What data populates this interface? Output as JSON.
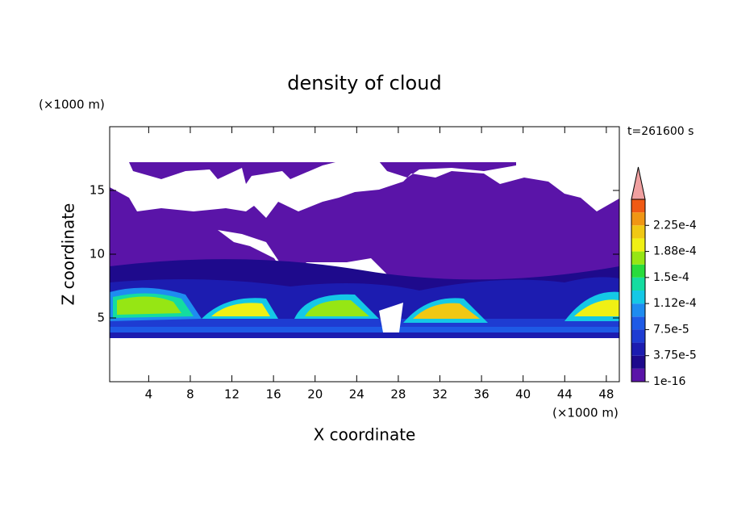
{
  "chart_data": {
    "type": "contour",
    "title": "density of cloud",
    "x_label": "X coordinate",
    "y_label": "Z coordinate",
    "x_unit": "(×1000 m)",
    "y_unit": "(×1000 m)",
    "time_label": "t=261600 s",
    "xlim": [
      0.25,
      49.25
    ],
    "ylim": [
      0,
      20
    ],
    "xticks": [
      4,
      8,
      12,
      16,
      20,
      24,
      28,
      32,
      36,
      40,
      44,
      48
    ],
    "yticks": [
      5,
      10,
      15
    ],
    "colorbar": {
      "levels": [
        1e-16,
        1.875e-05,
        3.75e-05,
        5.625e-05,
        7.5e-05,
        9.375e-05,
        0.0001125,
        0.00013125,
        0.00015,
        0.00016875,
        0.0001875,
        0.00020625,
        0.000225,
        0.00024375,
        0.0002625
      ],
      "colors": [
        "#5a14a8",
        "#1e0a8c",
        "#1c1cb0",
        "#1e3cd2",
        "#1e5ae6",
        "#1e8cf0",
        "#14c8e6",
        "#14dca0",
        "#28dc3c",
        "#96e614",
        "#f0f014",
        "#f0c814",
        "#f09614",
        "#f05a14"
      ],
      "extend_color": "#f0a0a0",
      "ticks": [
        {
          "value": 1e-16,
          "label": "1e-16"
        },
        {
          "value": 3.75e-05,
          "label": "3.75e-5"
        },
        {
          "value": 7.5e-05,
          "label": "7.5e-5"
        },
        {
          "value": 0.0001125,
          "label": "1.12e-4"
        },
        {
          "value": 0.00015,
          "label": "1.5e-4"
        },
        {
          "value": 0.0001875,
          "label": "1.88e-4"
        },
        {
          "value": 0.000225,
          "label": "2.25e-4"
        }
      ]
    }
  }
}
